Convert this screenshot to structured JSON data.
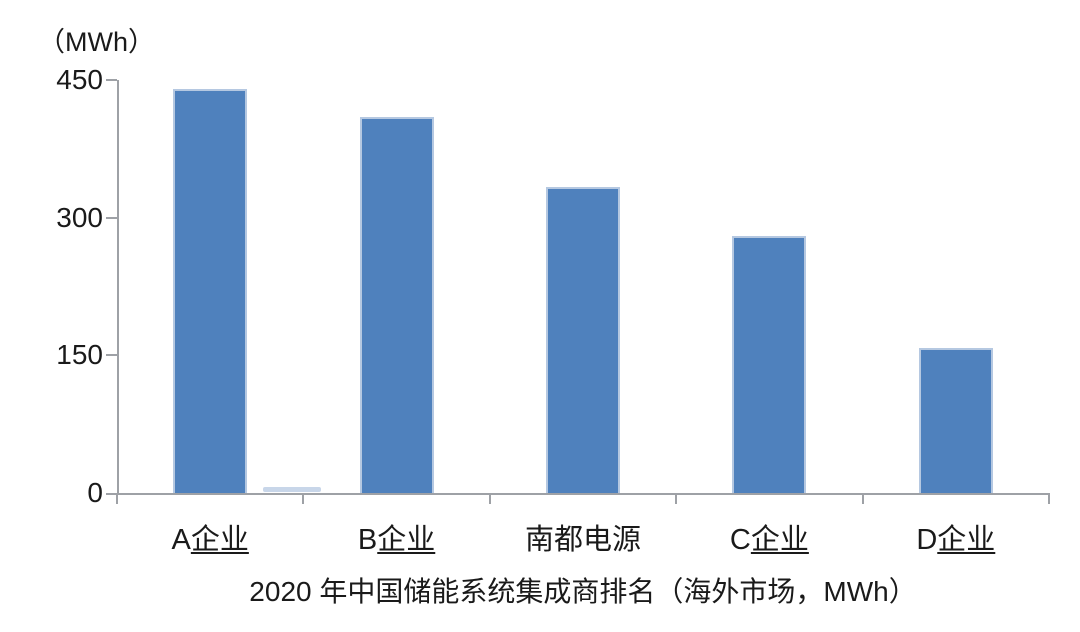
{
  "chart_data": {
    "type": "bar",
    "title": "2020 年中国储能系统集成商排名（海外市场，MWh）",
    "ylabel": "（MWh）",
    "xlabel": "",
    "categories": [
      "A企业",
      "B企业",
      "南都电源",
      "C企业",
      "D企业"
    ],
    "values": [
      440,
      410,
      333,
      280,
      158
    ],
    "yticks": [
      0,
      150,
      300,
      450
    ],
    "ylim": [
      0,
      450
    ],
    "grid": false,
    "legend": "none",
    "underlined_categories": [
      true,
      true,
      false,
      true,
      true
    ],
    "colors": {
      "bar_fill": "#4f81bd",
      "bar_edge": "#b5c8e1",
      "axis": "#9ea1a6",
      "text": "#1a1a1a"
    }
  }
}
